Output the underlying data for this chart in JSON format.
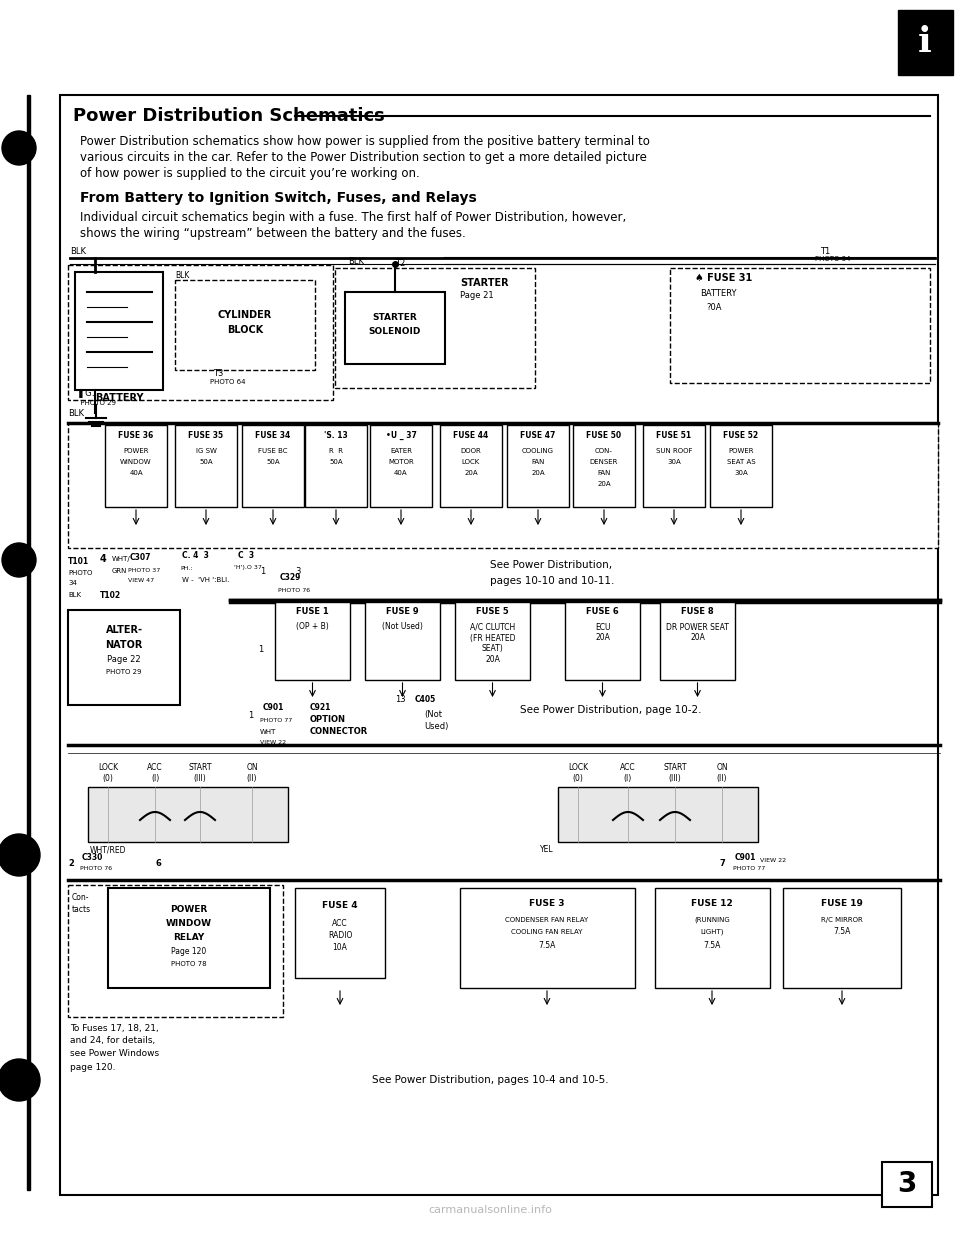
{
  "bg_color": "#ffffff",
  "title": "Power Distribution Schematics",
  "body_text_1a": "Power Distribution schematics show how power is supplied from the positive battery terminal to",
  "body_text_1b": "various circuits in the car. Refer to the Power Distribution section to get a more detailed picture",
  "body_text_1c": "of how power is supplied to the circuit you’re working on.",
  "subtitle": "From Battery to Ignition Switch, Fuses, and Relays",
  "body_text_2a": "Individual circuit schematics begin with a fuse. The first half of Power Distribution, however,",
  "body_text_2b": "shows the wiring “upstream” between the battery and the fuses.",
  "page_number": "3",
  "watermark": "carmanualsonline.info",
  "tab_label": "i"
}
